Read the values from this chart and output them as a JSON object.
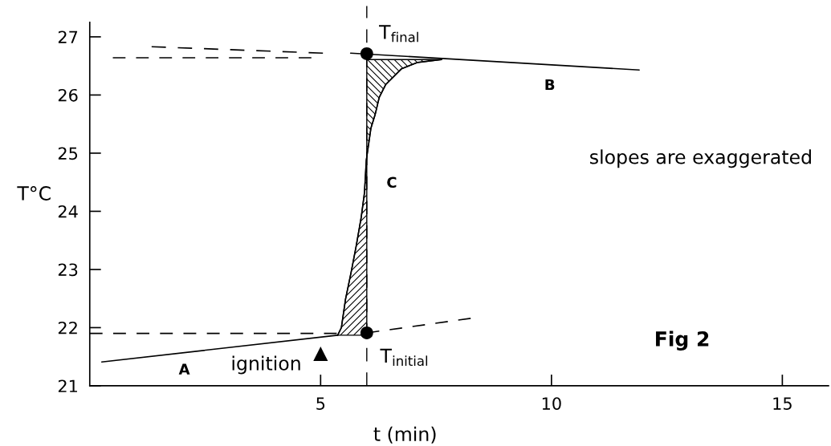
{
  "chart_data": {
    "type": "line",
    "xlabel": "t (min)",
    "ylabel": "T°C",
    "xlim": [
      0,
      16
    ],
    "ylim": [
      21,
      27.25
    ],
    "xticks": [
      5,
      10,
      15
    ],
    "yticks": [
      21,
      22,
      23,
      24,
      25,
      26,
      27
    ],
    "series": [
      {
        "name": "A",
        "type": "line",
        "color": "#000000",
        "line_style": "solid",
        "x": [
          0.26,
          5.37
        ],
        "values": [
          21.41,
          21.87
        ]
      },
      {
        "name": "C",
        "type": "line",
        "color": "#000000",
        "line_style": "solid",
        "x": [
          5.37,
          5.45,
          5.54,
          5.66,
          5.77,
          5.88,
          5.95,
          5.99,
          6.09,
          6.18,
          6.27,
          6.41,
          6.75,
          7.1,
          7.62
        ],
        "values": [
          21.87,
          22.0,
          22.49,
          22.95,
          23.4,
          23.9,
          24.32,
          24.88,
          25.43,
          25.66,
          25.96,
          26.18,
          26.45,
          26.56,
          26.61
        ]
      },
      {
        "name": "B",
        "type": "line",
        "color": "#000000",
        "line_style": "solid",
        "x": [
          5.65,
          11.9
        ],
        "values": [
          26.72,
          26.43
        ]
      },
      {
        "type": "line",
        "color": "#000000",
        "line_style": "dashed",
        "x": [
          0,
          5.35
        ],
        "values": [
          21.9,
          21.9
        ]
      },
      {
        "type": "line",
        "color": "#000000",
        "line_style": "dashed",
        "x": [
          6,
          8.25
        ],
        "values": [
          21.91,
          22.16
        ]
      },
      {
        "type": "line",
        "color": "#000000",
        "line_style": "dashed",
        "x": [
          0.5,
          4.8
        ],
        "values": [
          26.64,
          26.64
        ]
      },
      {
        "type": "line",
        "color": "#000000",
        "line_style": "dashed",
        "x": [
          1.34,
          5.05
        ],
        "values": [
          26.83,
          26.72
        ]
      },
      {
        "type": "scatter",
        "color": "#000000",
        "marker": "circle",
        "x": [
          6,
          6
        ],
        "values": [
          21.91,
          26.71
        ]
      },
      {
        "type": "scatter",
        "color": "#000000",
        "marker": "triangle",
        "x": [
          5
        ],
        "values": [
          21.55
        ]
      }
    ],
    "ref_lines": [
      {
        "axis": "x",
        "value": 6,
        "color": "#000000",
        "line_style": "dashed"
      }
    ],
    "annotations": [
      "T$_{final}$",
      "T$_{initial}$",
      "ignition",
      "slopes are exaggerated",
      "Fig 2"
    ]
  }
}
